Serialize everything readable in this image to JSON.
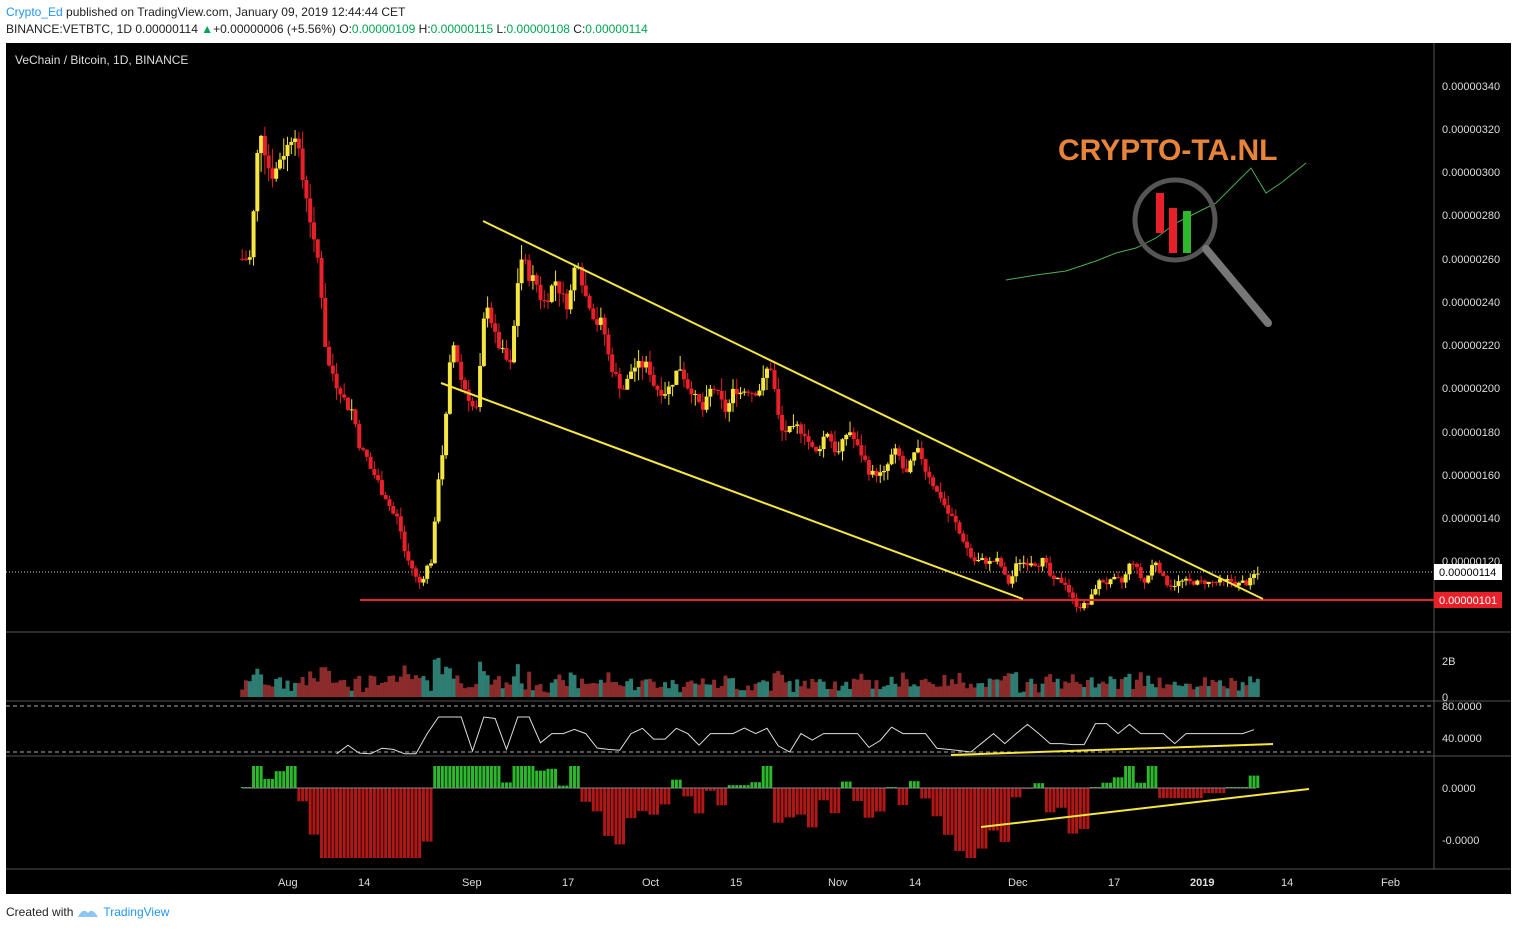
{
  "header": {
    "user": "Crypto_Ed",
    "published": "published on TradingView.com, January 09, 2019 12:44:44 CET",
    "symbol": "BINANCE:VETBTC, 1D",
    "last": "0.00000114",
    "arrow": "▲",
    "change": "+0.00000006 (+5.56%)",
    "o_label": "O:",
    "o_value": "0.00000109",
    "h_label": "H:",
    "h_value": "0.00000115",
    "l_label": "L:",
    "l_value": "0.00000108",
    "c_label": "C:",
    "c_value": "0.00000114"
  },
  "chart_title": "VeChain / Bitcoin, 1D, BINANCE",
  "watermark": "CRYPTO-TA.NL",
  "footer": {
    "created": "Created with",
    "brand": "TradingView"
  },
  "colors": {
    "background": "#000000",
    "up": "#f5e642",
    "down": "#e8202a",
    "trendline": "#f5e642",
    "support": "#e8202a",
    "volume_up": "#2e7d72",
    "volume_down": "#8c2b2b",
    "macd_pos": "#2eb82e",
    "macd_neg": "#b01818",
    "watermark": "#e8833a"
  },
  "chart_data": [
    {
      "type": "candlestick",
      "title": "VeChain / Bitcoin, 1D, BINANCE",
      "x_ticks": [
        "Aug",
        "14",
        "Sep",
        "17",
        "Oct",
        "15",
        "Nov",
        "14",
        "Dec",
        "17",
        "2019",
        "14",
        "Feb"
      ],
      "y_ticks": [
        "0.00000340",
        "0.00000320",
        "0.00000300",
        "0.00000280",
        "0.00000260",
        "0.00000240",
        "0.00000220",
        "0.00000200",
        "0.00000180",
        "0.00000160",
        "0.00000140",
        "0.00000120"
      ],
      "ylim": [
        9.6e-07,
        3.5e-06
      ],
      "price_labels": {
        "last": "0.00000114",
        "support": "0.00000101"
      },
      "support_level": 1.01e-06,
      "last_price": 1.14e-06,
      "closes": [
        2.6e-06,
        3.2e-06,
        3e-06,
        3.1e-06,
        3.2e-06,
        2.9e-06,
        2.6e-06,
        2.1e-06,
        2e-06,
        1.9e-06,
        1.7e-06,
        1.6e-06,
        1.5e-06,
        1.4e-06,
        1.2e-06,
        1.1e-06,
        1.2e-06,
        1.7e-06,
        2.2e-06,
        2e-06,
        1.9e-06,
        2.4e-06,
        2.2e-06,
        2.1e-06,
        2.6e-06,
        2.5e-06,
        2.4e-06,
        2.5e-06,
        2.4e-06,
        2.6e-06,
        2.4e-06,
        2.3e-06,
        2.1e-06,
        2e-06,
        2.1e-06,
        2.1e-06,
        2e-06,
        2e-06,
        2.1e-06,
        2e-06,
        1.9e-06,
        2e-06,
        1.9e-06,
        2e-06,
        2e-06,
        2e-06,
        2.1e-06,
        1.8e-06,
        1.8e-06,
        1.8e-06,
        1.7e-06,
        1.8e-06,
        1.7e-06,
        1.8e-06,
        1.7e-06,
        1.6e-06,
        1.6e-06,
        1.7e-06,
        1.6e-06,
        1.7e-06,
        1.6e-06,
        1.5e-06,
        1.4e-06,
        1.3e-06,
        1.2e-06,
        1.2e-06,
        1.2e-06,
        1.1e-06,
        1.2e-06,
        1.2e-06,
        1.2e-06,
        1.1e-06,
        1.1e-06,
        1e-06,
        1e-06,
        1.1e-06,
        1.1e-06,
        1.1e-06,
        1.2e-06,
        1.1e-06,
        1.2e-06,
        1.1e-06,
        1.1e-06,
        1.1e-06,
        1.1e-06,
        1.1e-06,
        1.1e-06,
        1.1e-06,
        1.1e-06,
        1.14e-06
      ],
      "trendlines": [
        {
          "name": "upper",
          "from": [
            "2018-09-03",
            2.77e-06
          ],
          "to": [
            "2019-01-12",
            1.01e-06
          ]
        },
        {
          "name": "lower",
          "from": [
            "2018-08-28",
            2.02e-06
          ],
          "to": [
            "2018-12-14",
            1.01e-06
          ]
        }
      ]
    },
    {
      "type": "bar",
      "title": "Volume",
      "y_ticks": [
        "2B",
        "0"
      ]
    },
    {
      "type": "line",
      "title": "RSI",
      "y_ticks": [
        "80.0000",
        "40.0000"
      ],
      "bands": [
        80,
        30
      ],
      "ylim": [
        20,
        80
      ]
    },
    {
      "type": "bar",
      "title": "MACD histogram",
      "y_ticks": [
        "0.0000",
        "-0.0000"
      ]
    }
  ]
}
